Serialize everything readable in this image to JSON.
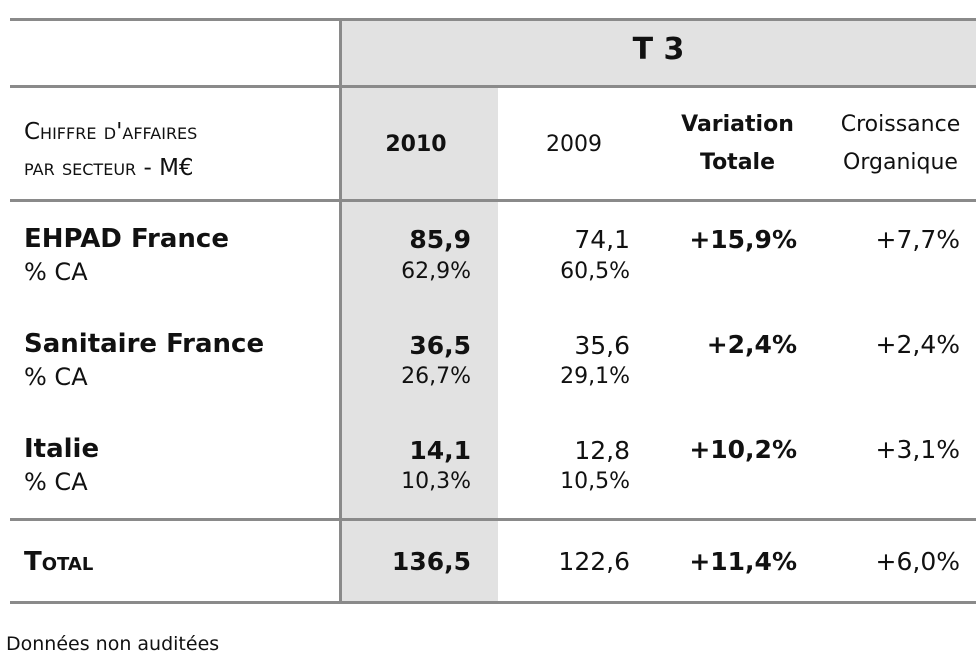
{
  "table": {
    "period_header": "T 3",
    "row_header_line1": "Chiffre d'affaires",
    "row_header_line2": "par secteur - M€",
    "col_2010": "2010",
    "col_2009": "2009",
    "col_variation_l1": "Variation",
    "col_variation_l2": "Totale",
    "col_croissance_l1": "Croissance",
    "col_croissance_l2": "Organique",
    "rows": [
      {
        "name": "EHPAD France",
        "sub": "% CA",
        "v2010": "85,9",
        "p2010": "62,9%",
        "v2009": "74,1",
        "p2009": "60,5%",
        "variation": "+15,9%",
        "organique": "+7,7%"
      },
      {
        "name": "Sanitaire France",
        "sub": "% CA",
        "v2010": "36,5",
        "p2010": "26,7%",
        "v2009": "35,6",
        "p2009": "29,1%",
        "variation": "+2,4%",
        "organique": "+2,4%"
      },
      {
        "name": "Italie",
        "sub": "% CA",
        "v2010": "14,1",
        "p2010": "10,3%",
        "v2009": "12,8",
        "p2009": "10,5%",
        "variation": "+10,2%",
        "organique": "+3,1%"
      }
    ],
    "total": {
      "label": "Total",
      "v2010": "136,5",
      "v2009": "122,6",
      "variation": "+11,4%",
      "organique": "+6,0%"
    }
  },
  "footnote": "Données non auditées"
}
